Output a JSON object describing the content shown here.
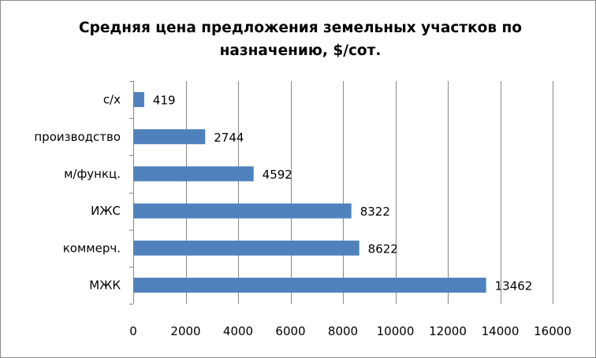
{
  "chart_data": {
    "type": "bar",
    "orientation": "horizontal",
    "title": "Средняя цена предложения земельных участков по назначению, $/сот.",
    "title_lines": [
      "Средняя цена предложения земельных участков по",
      "назначению, $/сот."
    ],
    "categories": [
      "с/х",
      "производство",
      "м/функц.",
      "ИЖС",
      "коммерч.",
      "МЖК"
    ],
    "values": [
      419,
      2744,
      4592,
      8322,
      8622,
      13462
    ],
    "data_labels": [
      "419",
      "2744",
      "4592",
      "8322",
      "8622",
      "13462"
    ],
    "xlim": [
      0,
      16000
    ],
    "x_ticks": [
      "0",
      "2000",
      "4000",
      "6000",
      "8000",
      "10000",
      "12000",
      "14000",
      "16000"
    ],
    "gridlines": "vertical",
    "legend": "none",
    "bar_color": "#4f81bd",
    "grid_color": "#888888"
  }
}
